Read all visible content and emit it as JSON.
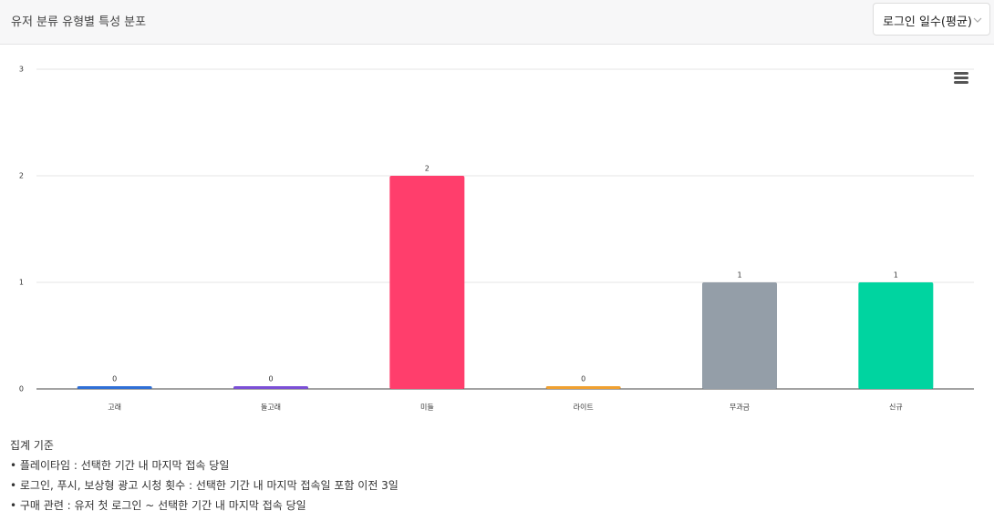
{
  "header": {
    "title": "유저 분류 유형별 특성 분포",
    "dropdown": "로그인 일수(평균)"
  },
  "chart_data": {
    "type": "bar",
    "categories": [
      "고래",
      "돌고래",
      "미들",
      "라이트",
      "무과금",
      "신규"
    ],
    "values": [
      0,
      0,
      2,
      0,
      1,
      1
    ],
    "colors": [
      "#2f6fd6",
      "#7b4fd6",
      "#ff3e6c",
      "#f0a030",
      "#949ea8",
      "#00d4a0"
    ],
    "ylim": [
      0,
      3
    ],
    "yticks": [
      0,
      1,
      2,
      3
    ],
    "grid": true,
    "data_labels": true
  },
  "notes": {
    "heading": "집계 기준",
    "items": [
      "• 플레이타임 : 선택한 기간 내 마지막 접속 당일",
      "• 로그인, 푸시, 보상형 광고 시청 횟수 : 선택한 기간 내 마지막 접속일 포함 이전 3일",
      "• 구매 관련 : 유저 첫 로그인 ~ 선택한 기간 내 마지막 접속 당일"
    ]
  }
}
